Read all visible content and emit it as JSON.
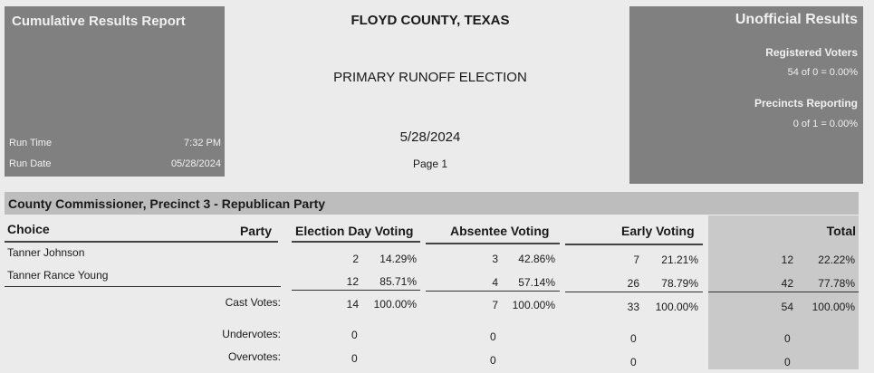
{
  "report": {
    "title": "Cumulative Results Report",
    "run_time_label": "Run Time",
    "run_time": "7:32 PM",
    "run_date_label": "Run Date",
    "run_date": "05/28/2024"
  },
  "header": {
    "county": "FLOYD COUNTY, TEXAS",
    "election": "PRIMARY RUNOFF ELECTION",
    "date": "5/28/2024",
    "page": "Page 1"
  },
  "status": {
    "title": "Unofficial Results",
    "registered_label": "Registered Voters",
    "registered_value": "54 of 0 = 0.00%",
    "precincts_label": "Precincts Reporting",
    "precincts_value": "0 of 1 = 0.00%"
  },
  "race": {
    "title": "County Commissioner, Precinct 3 - Republican Party",
    "columns": {
      "choice": "Choice",
      "party": "Party",
      "election_day": "Election Day Voting",
      "absentee": "Absentee Voting",
      "early": "Early Voting",
      "total": "Total"
    },
    "candidates": [
      {
        "name": "Tanner Johnson",
        "ed_votes": "2",
        "ed_pct": "14.29%",
        "ab_votes": "3",
        "ab_pct": "42.86%",
        "ea_votes": "7",
        "ea_pct": "21.21%",
        "tot_votes": "12",
        "tot_pct": "22.22%"
      },
      {
        "name": "Tanner Rance Young",
        "ed_votes": "12",
        "ed_pct": "85.71%",
        "ab_votes": "4",
        "ab_pct": "57.14%",
        "ea_votes": "26",
        "ea_pct": "78.79%",
        "tot_votes": "42",
        "tot_pct": "77.78%"
      }
    ],
    "cast": {
      "label": "Cast Votes:",
      "ed_votes": "14",
      "ed_pct": "100.00%",
      "ab_votes": "7",
      "ab_pct": "100.00%",
      "ea_votes": "33",
      "ea_pct": "100.00%",
      "tot_votes": "54",
      "tot_pct": "100.00%"
    },
    "undervotes": {
      "label": "Undervotes:",
      "ed": "0",
      "ab": "0",
      "ea": "0",
      "tot": "0"
    },
    "overvotes": {
      "label": "Overvotes:",
      "ed": "0",
      "ab": "0",
      "ea": "0",
      "tot": "0"
    }
  }
}
